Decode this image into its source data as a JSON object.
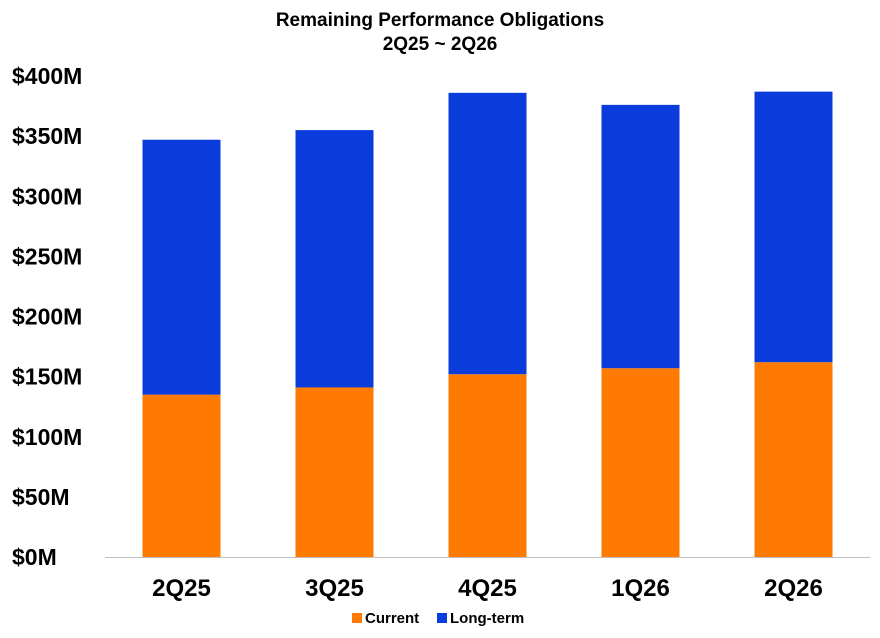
{
  "chart_data": {
    "type": "bar",
    "stacked": true,
    "title": "Remaining Performance Obligations",
    "subtitle": "2Q25 ~ 2Q26",
    "categories": [
      "2Q25",
      "3Q25",
      "4Q25",
      "1Q26",
      "2Q26"
    ],
    "series": [
      {
        "name": "Current",
        "color": "#FF7A00",
        "values": [
          135,
          141,
          152,
          157,
          162
        ]
      },
      {
        "name": "Long-term",
        "color": "#0A3BDB",
        "values": [
          212,
          214,
          234,
          219,
          225
        ]
      }
    ],
    "ylim": [
      0,
      400
    ],
    "yticks": [
      0,
      50,
      100,
      150,
      200,
      250,
      300,
      350,
      400
    ],
    "ytick_labels": [
      "$0M",
      "$50M",
      "$100M",
      "$150M",
      "$200M",
      "$250M",
      "$300M",
      "$350M",
      "$400M"
    ],
    "xlabel": "",
    "ylabel": "",
    "grid": false,
    "legend_position": "bottom-center"
  }
}
